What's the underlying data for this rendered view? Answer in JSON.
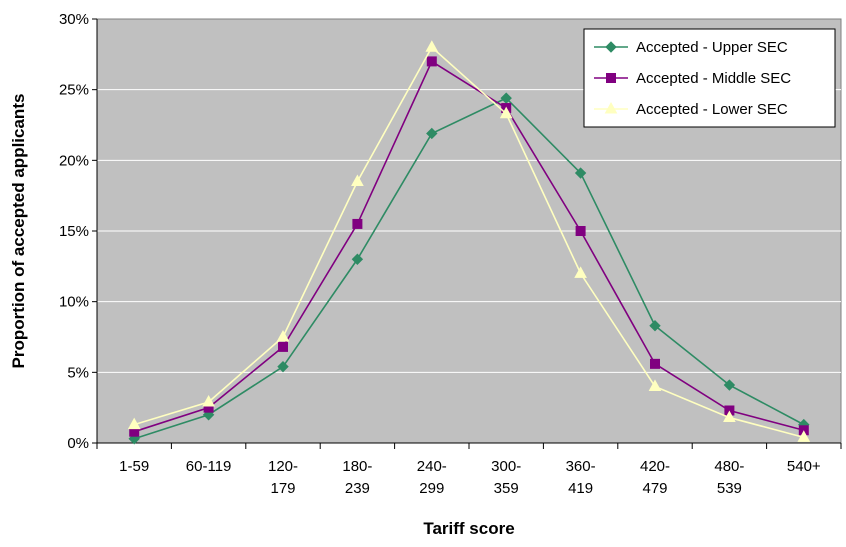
{
  "chart_data": {
    "type": "line",
    "title": "",
    "xlabel": "Tariff score",
    "ylabel": "Proportion of accepted applicants",
    "categories": [
      [
        "1-59"
      ],
      [
        "60-119"
      ],
      [
        "120-",
        "179"
      ],
      [
        "180-",
        "239"
      ],
      [
        "240-",
        "299"
      ],
      [
        "300-",
        "359"
      ],
      [
        "360-",
        "419"
      ],
      [
        "420-",
        "479"
      ],
      [
        "480-",
        "539"
      ],
      [
        "540+"
      ]
    ],
    "ylim": [
      0,
      0.3
    ],
    "yticks": [
      0,
      0.05,
      0.1,
      0.15,
      0.2,
      0.25,
      0.3
    ],
    "ytick_labels": [
      "0%",
      "5%",
      "10%",
      "15%",
      "20%",
      "25%",
      "30%"
    ],
    "grid": true,
    "plot_background": "#c0c0c0",
    "legend_position": "top-right",
    "series": [
      {
        "name": "Accepted - Upper SEC",
        "color": "#2e8b64",
        "marker": "diamond",
        "values": [
          0.003,
          0.02,
          0.054,
          0.13,
          0.219,
          0.244,
          0.191,
          0.083,
          0.041,
          0.013
        ]
      },
      {
        "name": "Accepted - Middle SEC",
        "color": "#800080",
        "marker": "square",
        "values": [
          0.008,
          0.025,
          0.068,
          0.155,
          0.27,
          0.237,
          0.15,
          0.056,
          0.023,
          0.009
        ]
      },
      {
        "name": "Accepted - Lower SEC",
        "color": "#ffffc0",
        "marker": "triangle",
        "values": [
          0.013,
          0.029,
          0.075,
          0.185,
          0.28,
          0.233,
          0.12,
          0.04,
          0.018,
          0.004
        ]
      }
    ]
  }
}
